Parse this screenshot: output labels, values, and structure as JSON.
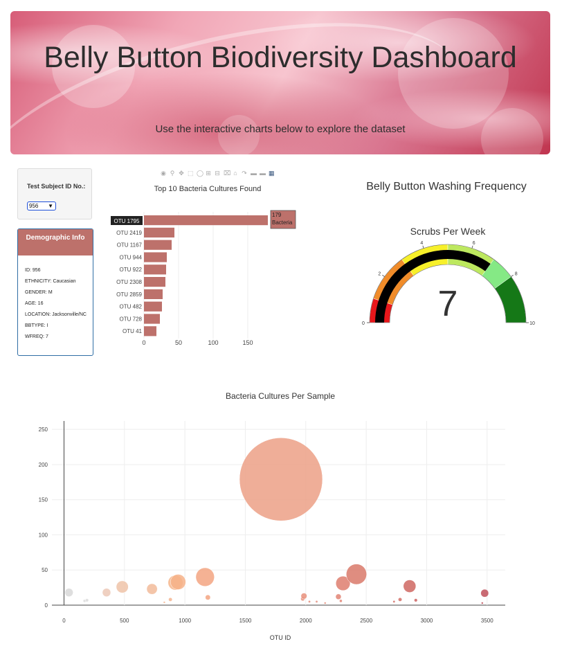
{
  "header": {
    "title": "Belly Button Biodiversity Dashboard",
    "subtitle": "Use the interactive charts below to explore the dataset"
  },
  "selector": {
    "label": "Test Subject ID No.:",
    "value": "956"
  },
  "demographics": {
    "heading": "Demographic Info",
    "rows": [
      "ID: 956",
      "ETHNICITY: Caucasian",
      "GENDER: M",
      "AGE: 16",
      "LOCATION: Jacksonville/NC",
      "BBTYPE: I",
      "WFREQ: 7"
    ]
  },
  "colors": {
    "bar": "#bd716b",
    "accent": "#2e6da4"
  },
  "modebar_icons": [
    "camera-icon",
    "zoom-icon",
    "pan-icon",
    "box-select-icon",
    "lasso-icon",
    "zoom-in-icon",
    "zoom-out-icon",
    "autoscale-icon",
    "home-icon",
    "spike-icon",
    "hover-closest-icon",
    "hover-compare-icon",
    "plotly-logo-icon"
  ],
  "bar_tooltip": [
    "179",
    "Bacteria"
  ],
  "gauge_panel_title": "Belly Button Washing Frequency",
  "chart_data": [
    {
      "type": "bar",
      "orientation": "horizontal",
      "title": "Top 10 Bacteria Cultures Found",
      "categories": [
        "OTU 1795",
        "OTU 2419",
        "OTU 1167",
        "OTU 944",
        "OTU 922",
        "OTU 2308",
        "OTU 2859",
        "OTU 482",
        "OTU 728",
        "OTU 41"
      ],
      "values": [
        179,
        44,
        40,
        33,
        32,
        31,
        27,
        26,
        23,
        18
      ],
      "xticks": [
        0,
        50,
        100,
        150
      ],
      "xlim": [
        0,
        188
      ],
      "grid": true
    },
    {
      "type": "gauge",
      "title": "Scrubs Per Week",
      "value": 7,
      "range": [
        0,
        10
      ],
      "ticks": [
        0,
        2,
        4,
        6,
        8,
        10
      ],
      "steps": [
        {
          "range": [
            0,
            1
          ],
          "color": "#e8171b"
        },
        {
          "range": [
            1,
            3
          ],
          "color": "#f08c2a"
        },
        {
          "range": [
            3,
            5
          ],
          "color": "#f7f02a"
        },
        {
          "range": [
            5,
            7
          ],
          "color": "#bde85f"
        },
        {
          "range": [
            7,
            8
          ],
          "color": "#85e985"
        },
        {
          "range": [
            8,
            10
          ],
          "color": "#157817"
        }
      ],
      "bar_color": "#000000"
    },
    {
      "type": "scatter",
      "subtype": "bubble",
      "title": "Bacteria Cultures Per Sample",
      "xlabel": "OTU ID",
      "ylabel": "",
      "xlim": [
        -100,
        3650
      ],
      "ylim": [
        0,
        262
      ],
      "xticks": [
        0,
        500,
        1000,
        1500,
        2000,
        2500,
        3000,
        3500
      ],
      "yticks": [
        0,
        50,
        100,
        150,
        200,
        250
      ],
      "grid": true,
      "points": [
        {
          "x": 41,
          "y": 18,
          "color": "#d8d8d8"
        },
        {
          "x": 170,
          "y": 6,
          "color": "#dcdcdc"
        },
        {
          "x": 190,
          "y": 7,
          "color": "#dcdcdc"
        },
        {
          "x": 352,
          "y": 18,
          "color": "#ecc8b6"
        },
        {
          "x": 482,
          "y": 26,
          "color": "#eec3a8"
        },
        {
          "x": 728,
          "y": 23,
          "color": "#f2bb9a"
        },
        {
          "x": 830,
          "y": 4,
          "color": "#f4b996"
        },
        {
          "x": 880,
          "y": 8,
          "color": "#f4b48f"
        },
        {
          "x": 922,
          "y": 32,
          "color": "#f6b68c"
        },
        {
          "x": 944,
          "y": 33,
          "color": "#f6b188"
        },
        {
          "x": 1167,
          "y": 40,
          "color": "#f3a581"
        },
        {
          "x": 1190,
          "y": 11,
          "color": "#f3a581"
        },
        {
          "x": 1795,
          "y": 179,
          "color": "#eca086"
        },
        {
          "x": 1975,
          "y": 9,
          "color": "#e7907c"
        },
        {
          "x": 1985,
          "y": 13,
          "color": "#e7907c"
        },
        {
          "x": 2030,
          "y": 5,
          "color": "#e48d7b"
        },
        {
          "x": 2090,
          "y": 5,
          "color": "#e48d7b"
        },
        {
          "x": 2160,
          "y": 3,
          "color": "#e48d7b"
        },
        {
          "x": 2270,
          "y": 12,
          "color": "#e28474"
        },
        {
          "x": 2290,
          "y": 6,
          "color": "#e28474"
        },
        {
          "x": 2308,
          "y": 31,
          "color": "#de7e6e"
        },
        {
          "x": 2419,
          "y": 44,
          "color": "#d9796a"
        },
        {
          "x": 2730,
          "y": 5,
          "color": "#d36e66"
        },
        {
          "x": 2780,
          "y": 8,
          "color": "#d36e66"
        },
        {
          "x": 2859,
          "y": 27,
          "color": "#cf6762"
        },
        {
          "x": 2910,
          "y": 7,
          "color": "#cc6260"
        },
        {
          "x": 3460,
          "y": 3,
          "color": "#c0505a"
        },
        {
          "x": 3480,
          "y": 17,
          "color": "#c0505a"
        }
      ]
    }
  ]
}
